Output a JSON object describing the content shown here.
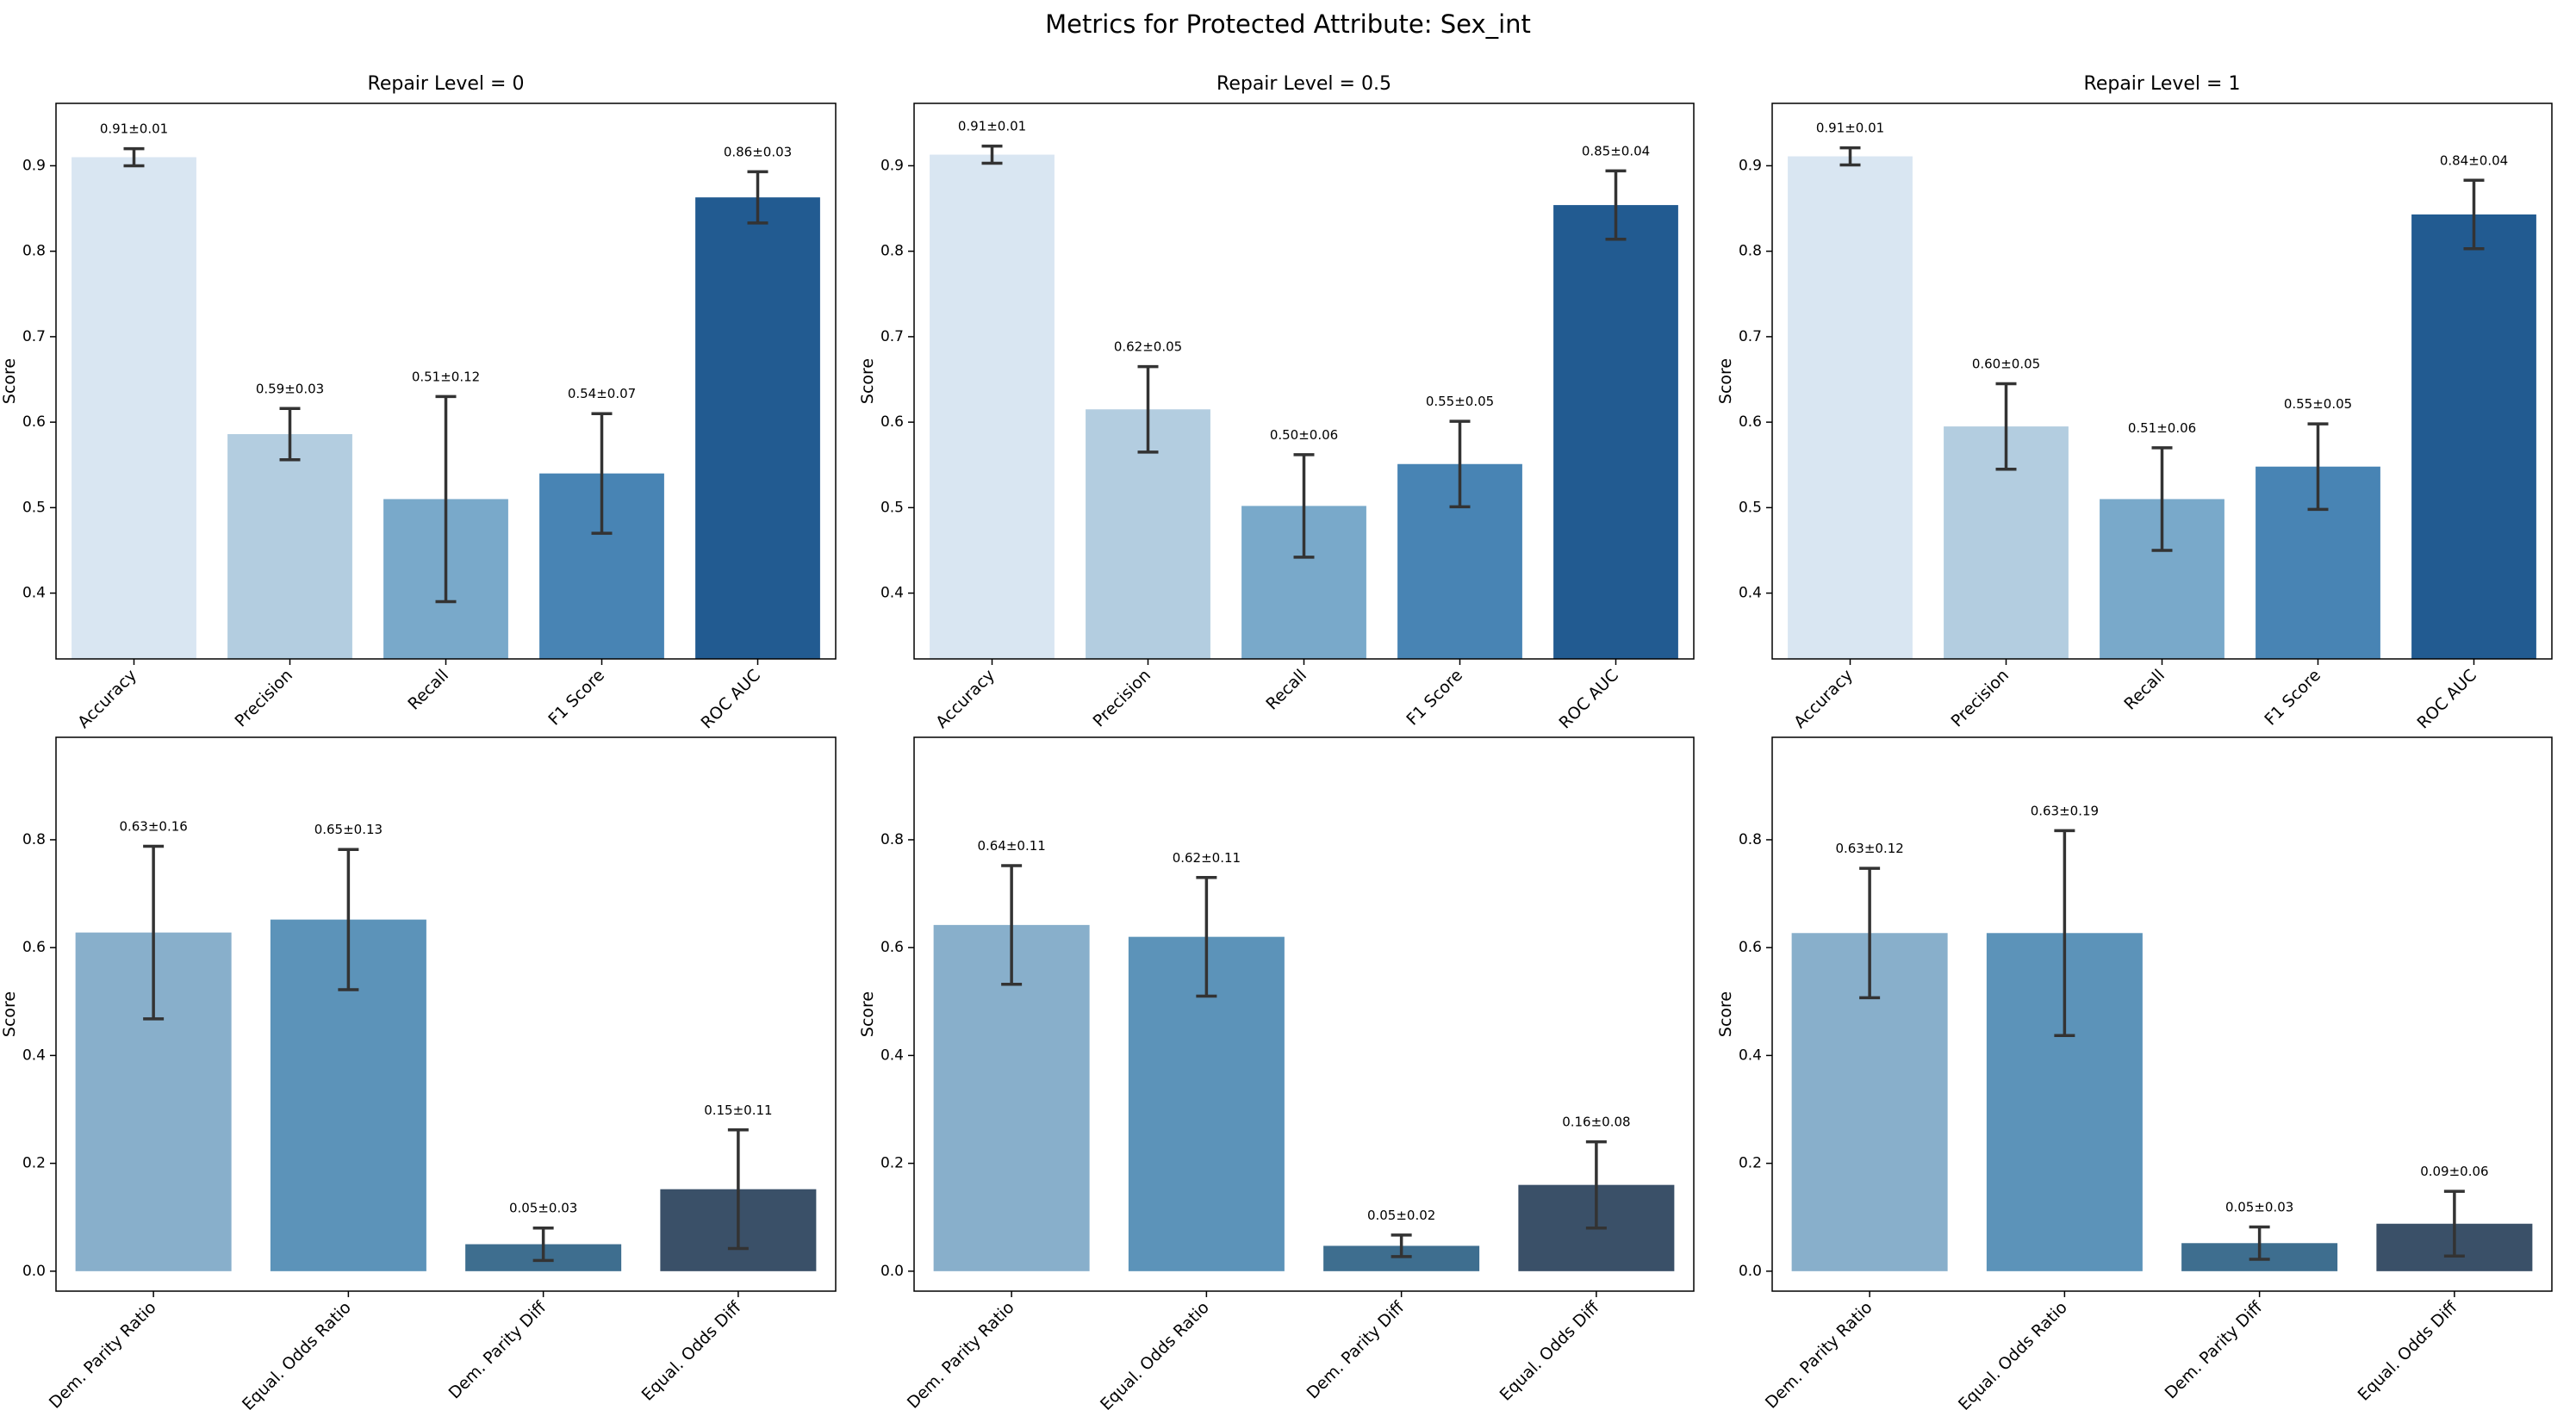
{
  "title": "Metrics for Protected Attribute: Sex_int",
  "chart_data": [
    {
      "type": "bar",
      "title": "Repair Level = 0",
      "ylabel": "Score",
      "categories": [
        "Accuracy",
        "Precision",
        "Recall",
        "F1 Score",
        "ROC AUC"
      ],
      "values": [
        0.91,
        0.586,
        0.51,
        0.54,
        0.863
      ],
      "errors": [
        0.01,
        0.03,
        0.12,
        0.07,
        0.03
      ],
      "value_labels": [
        "0.91±0.01",
        "0.59±0.03",
        "0.51±0.12",
        "0.54±0.07",
        "0.86±0.03"
      ],
      "colors": [
        "#d9e6f2",
        "#b3cde0",
        "#79a9ca",
        "#4884b4",
        "#225b91"
      ],
      "ylim": [
        0.323,
        0.973
      ],
      "yticks": [
        0.4,
        0.5,
        0.6,
        0.7,
        0.8,
        0.9
      ]
    },
    {
      "type": "bar",
      "title": "Repair Level = 0.5",
      "ylabel": "Score",
      "categories": [
        "Accuracy",
        "Precision",
        "Recall",
        "F1 Score",
        "ROC AUC"
      ],
      "values": [
        0.913,
        0.615,
        0.502,
        0.551,
        0.854
      ],
      "errors": [
        0.01,
        0.05,
        0.06,
        0.05,
        0.04
      ],
      "value_labels": [
        "0.91±0.01",
        "0.62±0.05",
        "0.50±0.06",
        "0.55±0.05",
        "0.85±0.04"
      ],
      "colors": [
        "#d9e6f2",
        "#b3cde0",
        "#79a9ca",
        "#4884b4",
        "#225b91"
      ],
      "ylim": [
        0.323,
        0.973
      ],
      "yticks": [
        0.4,
        0.5,
        0.6,
        0.7,
        0.8,
        0.9
      ]
    },
    {
      "type": "bar",
      "title": "Repair Level = 1",
      "ylabel": "Score",
      "categories": [
        "Accuracy",
        "Precision",
        "Recall",
        "F1 Score",
        "ROC AUC"
      ],
      "values": [
        0.911,
        0.595,
        0.51,
        0.548,
        0.843
      ],
      "errors": [
        0.01,
        0.05,
        0.06,
        0.05,
        0.04
      ],
      "value_labels": [
        "0.91±0.01",
        "0.60±0.05",
        "0.51±0.06",
        "0.55±0.05",
        "0.84±0.04"
      ],
      "colors": [
        "#d9e6f2",
        "#b3cde0",
        "#79a9ca",
        "#4884b4",
        "#225b91"
      ],
      "ylim": [
        0.323,
        0.973
      ],
      "yticks": [
        0.4,
        0.5,
        0.6,
        0.7,
        0.8,
        0.9
      ]
    },
    {
      "type": "bar",
      "ylabel": "Score",
      "categories": [
        "Dem. Parity Ratio",
        "Equal. Odds Ratio",
        "Dem. Parity Diff",
        "Equal. Odds Diff"
      ],
      "values": [
        0.628,
        0.652,
        0.05,
        0.152
      ],
      "errors": [
        0.16,
        0.13,
        0.03,
        0.11
      ],
      "value_labels": [
        "0.63±0.16",
        "0.65±0.13",
        "0.05±0.03",
        "0.15±0.11"
      ],
      "colors": [
        "#88afcb",
        "#5c93b9",
        "#3e6e8f",
        "#3a5068"
      ],
      "ylim": [
        -0.037,
        0.99
      ],
      "yticks": [
        {
          "value": 0,
          "label": "0.0"
        },
        0.2,
        0.4,
        0.6,
        0.8
      ]
    },
    {
      "type": "bar",
      "ylabel": "Score",
      "categories": [
        "Dem. Parity Ratio",
        "Equal. Odds Ratio",
        "Dem. Parity Diff",
        "Equal. Odds Diff"
      ],
      "values": [
        0.642,
        0.62,
        0.047,
        0.16
      ],
      "errors": [
        0.11,
        0.11,
        0.02,
        0.08
      ],
      "value_labels": [
        "0.64±0.11",
        "0.62±0.11",
        "0.05±0.02",
        "0.16±0.08"
      ],
      "colors": [
        "#88afcb",
        "#5c93b9",
        "#3e6e8f",
        "#3a5068"
      ],
      "ylim": [
        -0.037,
        0.99
      ],
      "yticks": [
        {
          "value": 0,
          "label": "0.0"
        },
        0.2,
        0.4,
        0.6,
        0.8
      ]
    },
    {
      "type": "bar",
      "ylabel": "Score",
      "categories": [
        "Dem. Parity Ratio",
        "Equal. Odds Ratio",
        "Dem. Parity Diff",
        "Equal. Odds Diff"
      ],
      "values": [
        0.627,
        0.627,
        0.052,
        0.088
      ],
      "errors": [
        0.12,
        0.19,
        0.03,
        0.06
      ],
      "value_labels": [
        "0.63±0.12",
        "0.63±0.19",
        "0.05±0.03",
        "0.09±0.06"
      ],
      "colors": [
        "#88afcb",
        "#5c93b9",
        "#3e6e8f",
        "#3a5068"
      ],
      "ylim": [
        -0.037,
        0.99
      ],
      "yticks": [
        {
          "value": 0,
          "label": "0.0"
        },
        0.2,
        0.4,
        0.6,
        0.8
      ]
    }
  ]
}
